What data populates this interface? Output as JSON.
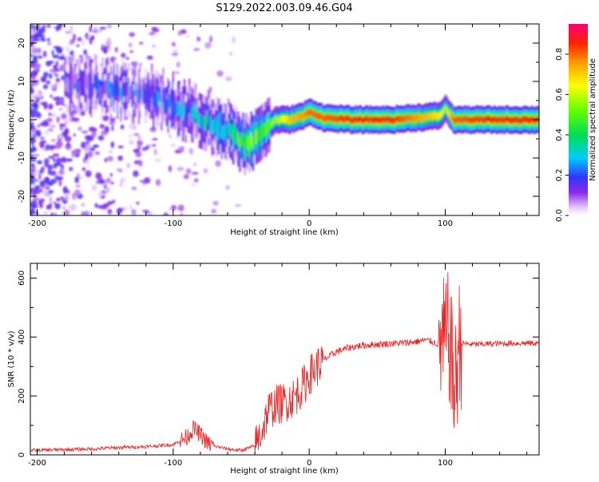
{
  "figure": {
    "title": "S129.2022.003.09.46.G04"
  },
  "chart_data": [
    {
      "type": "heatmap",
      "xlabel": "Height of straight line (km)",
      "ylabel": "Frequency (Hz)",
      "xlim": [
        -205,
        169
      ],
      "ylim": [
        -25,
        25
      ],
      "xticks": [
        -200,
        -100,
        0,
        100
      ],
      "yticks": [
        -20,
        -10,
        0,
        10,
        20
      ],
      "colorbar": {
        "label": "Normalized spectral amplitude",
        "range": [
          0.0,
          0.95
        ],
        "ticks": [
          0.0,
          0.2,
          0.4,
          0.6,
          0.8
        ],
        "colormap": "rainbow (violet → red → magenta)"
      },
      "ridge": {
        "x": [
          -175,
          -150,
          -125,
          -100,
          -80,
          -60,
          -50,
          -45,
          -35,
          -25,
          -15,
          -5,
          0,
          10,
          30,
          60,
          95,
          100,
          105,
          130,
          169
        ],
        "y": [
          10,
          8,
          7,
          4,
          1,
          -3,
          -6,
          -6,
          -3,
          0,
          0,
          1,
          2,
          0.5,
          0,
          0,
          1,
          3,
          0,
          0,
          0
        ],
        "amplitude": [
          0.15,
          0.2,
          0.2,
          0.25,
          0.3,
          0.35,
          0.5,
          0.55,
          0.5,
          0.6,
          0.75,
          0.8,
          0.85,
          0.85,
          0.9,
          0.9,
          0.7,
          0.6,
          0.85,
          0.9,
          0.9
        ]
      }
    },
    {
      "type": "line",
      "xlabel": "Height of straight line (km)",
      "ylabel": "SNR (10 * v/v)",
      "xlim": [
        -205,
        169
      ],
      "ylim": [
        0,
        650
      ],
      "xticks": [
        -200,
        -100,
        0,
        100
      ],
      "yticks": [
        0,
        200,
        400,
        600
      ],
      "color": "#ee2222",
      "series": [
        {
          "x": [
            -205,
            -180,
            -160,
            -140,
            -120,
            -100,
            -90,
            -85,
            -80,
            -75,
            -70,
            -60,
            -50,
            -40,
            -35,
            -30,
            -25,
            -20,
            -15,
            -10,
            -5,
            0,
            10,
            20,
            30,
            40,
            50,
            60,
            70,
            80,
            85,
            90,
            95,
            100,
            103,
            105,
            107,
            110,
            120,
            140,
            169
          ],
          "y": [
            15,
            18,
            20,
            25,
            28,
            35,
            60,
            90,
            70,
            40,
            30,
            20,
            15,
            30,
            80,
            150,
            170,
            175,
            185,
            200,
            230,
            270,
            320,
            350,
            365,
            372,
            375,
            378,
            380,
            385,
            390,
            385,
            375,
            380,
            400,
            300,
            200,
            380,
            375,
            378,
            380
          ]
        }
      ]
    }
  ]
}
